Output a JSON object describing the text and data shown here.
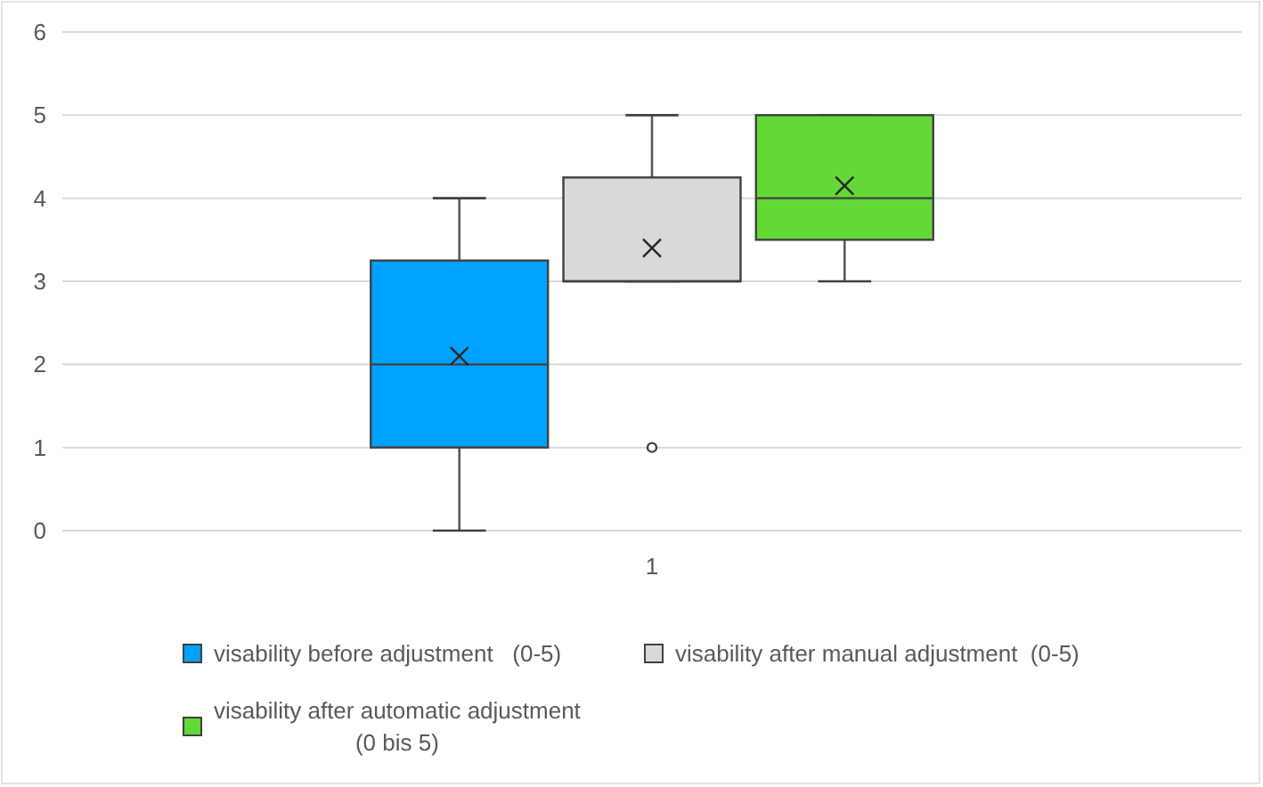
{
  "chart_data": {
    "type": "box",
    "categories": [
      "1"
    ],
    "ylim": [
      0,
      6
    ],
    "yticks": [
      0,
      1,
      2,
      3,
      4,
      5,
      6
    ],
    "grid": "y",
    "legend": "bottom",
    "series": [
      {
        "name": "visability before adjustment   (0-5)",
        "color": "#00a2ff",
        "boxes": [
          {
            "low": 0,
            "q1": 1,
            "median": 2,
            "q3": 3.25,
            "high": 4,
            "mean": 2.1
          }
        ]
      },
      {
        "name": "visability after manual adjustment  (0-5)",
        "color": "#d9d9d9",
        "boxes": [
          {
            "low": 3,
            "q1": 3,
            "median": 3,
            "q3": 4.25,
            "high": 5,
            "mean": 3.4,
            "outliers": [
              1
            ]
          }
        ]
      },
      {
        "name": "visability after automatic adjustment (0 bis 5)",
        "color": "#62d936",
        "boxes": [
          {
            "low": 3,
            "q1": 3.5,
            "median": 4,
            "q3": 5,
            "high": 5,
            "mean": 4.15
          }
        ]
      }
    ]
  }
}
